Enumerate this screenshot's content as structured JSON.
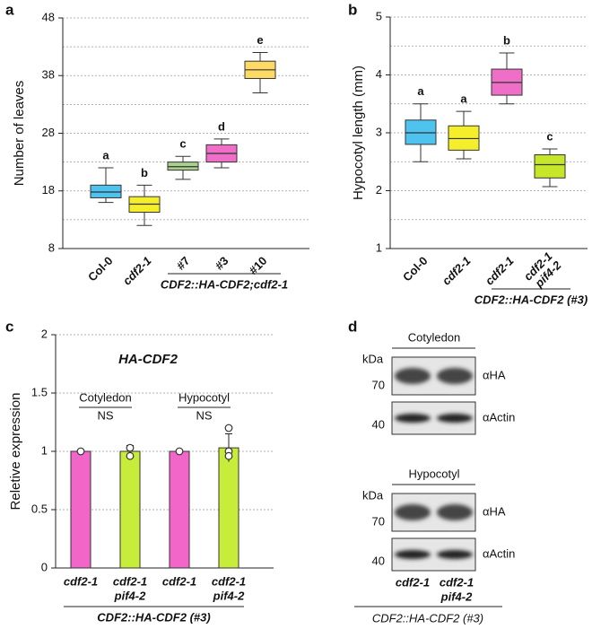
{
  "chart_data": [
    {
      "type": "box",
      "panel_label": "a",
      "ylabel": "Number of leaves",
      "categories": [
        "Col-0",
        "cdf2-1",
        "#7",
        "#3",
        "#10"
      ],
      "category_italic": [
        false,
        true,
        false,
        false,
        false
      ],
      "group_label": "CDF2::HA-CDF2;cdf2-1",
      "ylim": [
        8,
        48
      ],
      "yticks": [
        8,
        18,
        28,
        38,
        48
      ],
      "minor_yticks": [
        13,
        23,
        33,
        43
      ],
      "boxes": [
        {
          "low": 16,
          "q1": 16.8,
          "median": 17.8,
          "q3": 19,
          "high": 22,
          "color": "#4fc3f0",
          "letter": "a"
        },
        {
          "low": 12,
          "q1": 14.3,
          "median": 15.7,
          "q3": 17,
          "high": 19,
          "color": "#f4ef2a",
          "letter": "b"
        },
        {
          "low": 20,
          "q1": 21.6,
          "median": 22.2,
          "q3": 23,
          "high": 24,
          "color": "#a9d18e",
          "letter": "c"
        },
        {
          "low": 22,
          "q1": 23,
          "median": 24.5,
          "q3": 26,
          "high": 27,
          "color": "#ee6ec8",
          "letter": "d"
        },
        {
          "low": 35,
          "q1": 37.5,
          "median": 39,
          "q3": 40.5,
          "high": 42,
          "color": "#ffd966",
          "letter": "e"
        }
      ]
    },
    {
      "type": "box",
      "panel_label": "b",
      "ylabel": "Hypocotyl length (mm)",
      "categories": [
        "Col-0",
        "cdf2-1",
        "cdf2-1",
        [
          "cdf2-1",
          "pif4-2"
        ]
      ],
      "category_italic": [
        false,
        true,
        true,
        true
      ],
      "group_label": "CDF2::HA-CDF2 (#3)",
      "ylim": [
        1,
        5
      ],
      "yticks": [
        1,
        2,
        3,
        4,
        5
      ],
      "minor_yticks": [
        1.5,
        2.5,
        3.5,
        4.5
      ],
      "boxes": [
        {
          "low": 2.5,
          "q1": 2.8,
          "median": 3.0,
          "q3": 3.22,
          "high": 3.5,
          "color": "#4fc3f0",
          "letter": "a"
        },
        {
          "low": 2.55,
          "q1": 2.7,
          "median": 2.9,
          "q3": 3.12,
          "high": 3.37,
          "color": "#f4ef2a",
          "letter": "a"
        },
        {
          "low": 3.5,
          "q1": 3.65,
          "median": 3.87,
          "q3": 4.1,
          "high": 4.38,
          "color": "#ee6ec8",
          "letter": "b"
        },
        {
          "low": 2.07,
          "q1": 2.22,
          "median": 2.45,
          "q3": 2.62,
          "high": 2.72,
          "color": "#c6e62a",
          "letter": "c"
        }
      ]
    },
    {
      "type": "bar",
      "panel_label": "c",
      "title": "HA-CDF2",
      "ylabel": "Reletive expression",
      "categories": [
        [
          "cdf2-1"
        ],
        [
          "cdf2-1",
          "pif4-2"
        ],
        [
          "cdf2-1"
        ],
        [
          "cdf2-1",
          "pif4-2"
        ]
      ],
      "group_label": "CDF2::HA-CDF2 (#3)",
      "ylim": [
        0,
        2
      ],
      "yticks": [
        0,
        0.5,
        1,
        1.5,
        2
      ],
      "values": [
        1,
        1,
        1,
        1.03
      ],
      "errors": [
        0,
        0.05,
        0,
        0.12
      ],
      "points": [
        [
          1
        ],
        [
          1.03,
          0.96
        ],
        [
          1
        ],
        [
          1.2,
          1.0,
          0.96
        ]
      ],
      "colors": [
        "#f266c9",
        "#c7ec3a",
        "#f266c9",
        "#c7ec3a"
      ],
      "comparisons": [
        {
          "label": "Cotyledon",
          "result": "NS"
        },
        {
          "label": "Hypocotyl",
          "result": "NS"
        }
      ]
    }
  ],
  "blot": {
    "panel_label": "d",
    "sections": [
      {
        "tissue": "Cotyledon",
        "unit": "kDa",
        "rows": [
          {
            "antibody": "αHA",
            "marker": 70
          },
          {
            "antibody": "αActin",
            "marker": 40
          }
        ]
      },
      {
        "tissue": "Hypocotyl",
        "unit": "kDa",
        "rows": [
          {
            "antibody": "αHA",
            "marker": 70
          },
          {
            "antibody": "αActin",
            "marker": 40
          }
        ]
      }
    ],
    "lanes": [
      [
        "cdf2-1"
      ],
      [
        "cdf2-1",
        "pif4-2"
      ]
    ],
    "construct": "CDF2::HA-CDF2 (#3)"
  }
}
